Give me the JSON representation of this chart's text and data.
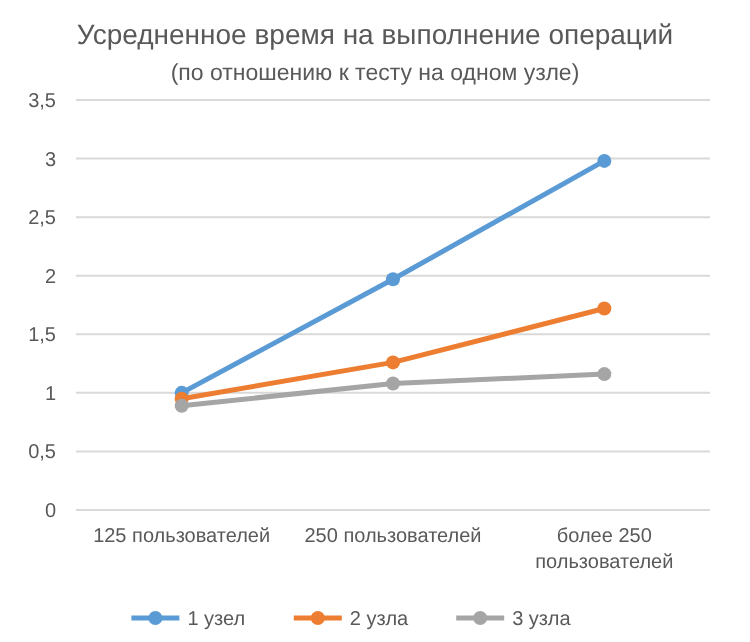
{
  "chart_data": {
    "type": "line",
    "title": "Усредненное время на выполнение операций",
    "subtitle": "(по отношению к тесту на одном узле)",
    "categories": [
      "125 пользователей",
      "250 пользователей",
      "более 250 пользователей"
    ],
    "series": [
      {
        "name": "1 узел",
        "color": "#5b9bd5",
        "values": [
          1.0,
          1.97,
          2.98
        ]
      },
      {
        "name": "2 узла",
        "color": "#ed7d31",
        "values": [
          0.95,
          1.26,
          1.72
        ]
      },
      {
        "name": "3 узла",
        "color": "#a5a5a5",
        "values": [
          0.89,
          1.08,
          1.16
        ]
      }
    ],
    "ylim": [
      0,
      3.5
    ],
    "yticks": [
      {
        "value": 0,
        "label": "0"
      },
      {
        "value": 0.5,
        "label": "0,5"
      },
      {
        "value": 1,
        "label": "1"
      },
      {
        "value": 1.5,
        "label": "1,5"
      },
      {
        "value": 2,
        "label": "2"
      },
      {
        "value": 2.5,
        "label": "2,5"
      },
      {
        "value": 3,
        "label": "3"
      },
      {
        "value": 3.5,
        "label": "3,5"
      }
    ],
    "grid": "y",
    "legend": "bottom",
    "marker": "circle",
    "line_style": "solid"
  }
}
